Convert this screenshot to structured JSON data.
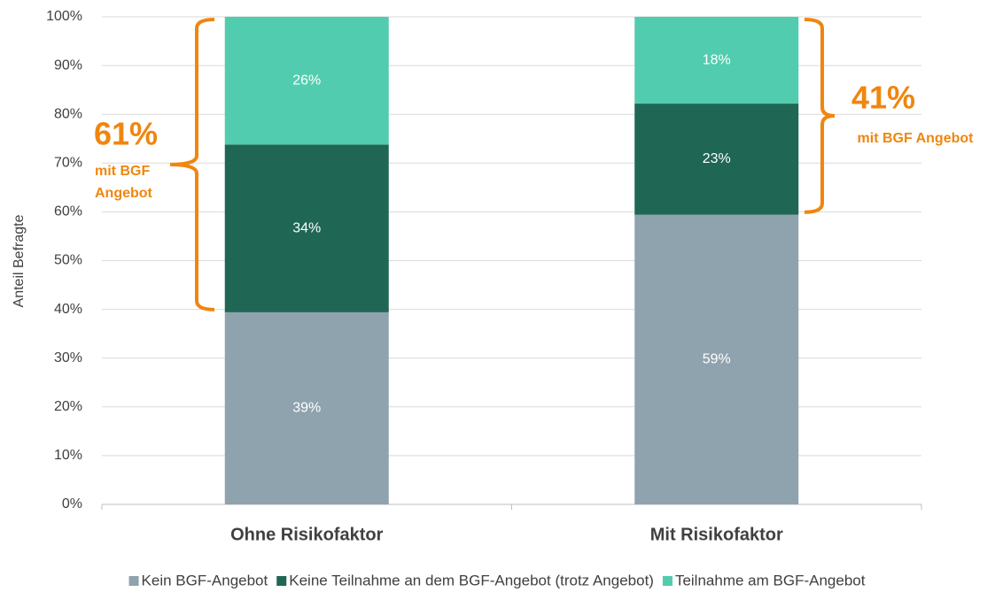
{
  "chart_data": {
    "type": "stacked_bar",
    "y_label": "Anteil Befragte",
    "categories": [
      "Ohne Risikofaktor",
      "Mit Risikofaktor"
    ],
    "series": [
      {
        "name": "Kein BGF-Angebot",
        "color": "#8fa3ae",
        "values": [
          39.4,
          59.4
        ],
        "value_labels": [
          "39%",
          "59%"
        ]
      },
      {
        "name": "Keine Teilnahme an dem BGF-Angebot (trotz Angebot)",
        "color": "#1f6655",
        "values": [
          34.4,
          22.8
        ],
        "value_labels": [
          "34%",
          "23%"
        ]
      },
      {
        "name": "Teilnahme am BGF-Angebot",
        "color": "#52ccae",
        "values": [
          26.2,
          17.8
        ],
        "value_labels": [
          "26%",
          "18%"
        ]
      }
    ],
    "ylim": [
      0,
      100
    ],
    "yticks": [
      {
        "value": 0,
        "label": "0%"
      },
      {
        "value": 10,
        "label": "10%"
      },
      {
        "value": 20,
        "label": "20%"
      },
      {
        "value": 30,
        "label": "30%"
      },
      {
        "value": 40,
        "label": "40%"
      },
      {
        "value": 50,
        "label": "50%"
      },
      {
        "value": 60,
        "label": "60%"
      },
      {
        "value": 70,
        "label": "70%"
      },
      {
        "value": 80,
        "label": "80%"
      },
      {
        "value": 90,
        "label": "90%"
      },
      {
        "value": 100,
        "label": "100%"
      }
    ],
    "grid": true,
    "legend": "bottom",
    "annotations": [
      {
        "value": "61%",
        "text": [
          "mit BGF",
          "Angebot"
        ],
        "color": "#f0860e"
      },
      {
        "value": "41%",
        "text": [
          "mit BGF Angebot"
        ],
        "color": "#f0860e"
      }
    ]
  }
}
